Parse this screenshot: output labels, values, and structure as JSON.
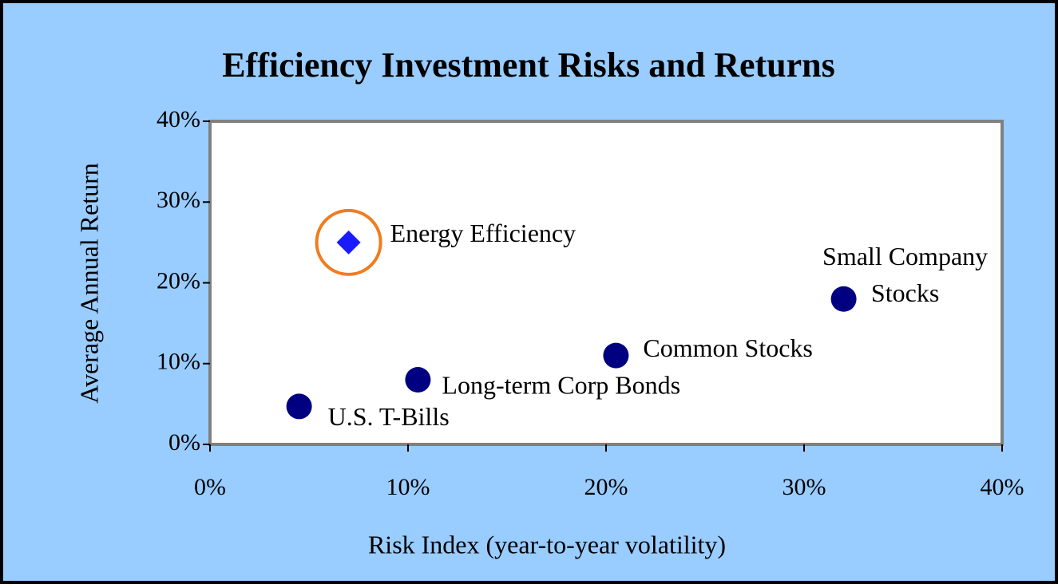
{
  "chart_data": {
    "type": "scatter",
    "title": "Efficiency Investment Risks and Returns",
    "x_label": "Risk Index (year-to-year volatility)",
    "y_label": "Average Annual Return",
    "xlim": [
      0,
      40
    ],
    "ylim": [
      0,
      40
    ],
    "xticks": [
      {
        "value": 0,
        "label": "0%"
      },
      {
        "value": 10,
        "label": "10%"
      },
      {
        "value": 20,
        "label": "20%"
      },
      {
        "value": 30,
        "label": "30%"
      },
      {
        "value": 40,
        "label": "40%"
      }
    ],
    "yticks": [
      {
        "value": 0,
        "label": "0%"
      },
      {
        "value": 10,
        "label": "10%"
      },
      {
        "value": 20,
        "label": "20%"
      },
      {
        "value": 30,
        "label": "30%"
      },
      {
        "value": 40,
        "label": "40%"
      }
    ],
    "highlight_color": "#f07c1e",
    "series": [
      {
        "color": "#1a1aff",
        "marker": "diamond",
        "highlight": true,
        "x": [
          7
        ],
        "values": [
          25
        ],
        "labels": [
          [
            "Energy Efficiency"
          ]
        ]
      },
      {
        "color": "#000080",
        "marker": "circle",
        "highlight": false,
        "x": [
          4.5,
          10.5,
          20.5,
          32
        ],
        "values": [
          4.7,
          8,
          11,
          18
        ],
        "labels": [
          [
            "U.S. T-Bills"
          ],
          [
            "Long-term Corp Bonds"
          ],
          [
            "Common Stocks"
          ],
          [
            "Small Company",
            "Stocks"
          ]
        ]
      }
    ]
  }
}
